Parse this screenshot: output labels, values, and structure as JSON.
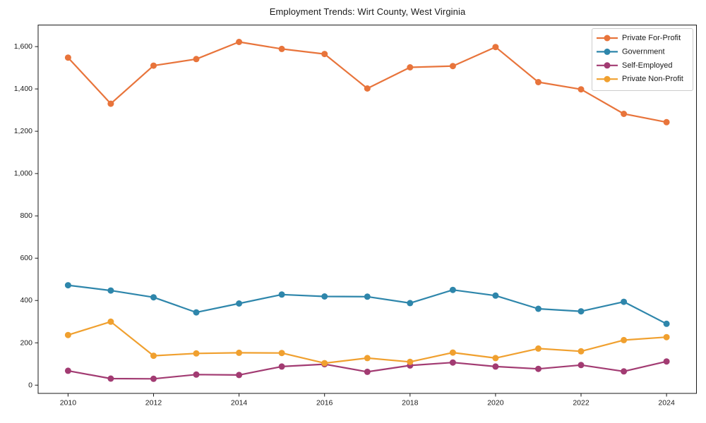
{
  "title": "Employment Trends: Wirt County, West Virginia",
  "chart_data": {
    "type": "line",
    "title": "Employment Trends: Wirt County, West Virginia",
    "xlabel": "",
    "ylabel": "",
    "grid": false,
    "legend_position": "upper-right",
    "background": "#ffffff",
    "text_color": "#1a1a1a",
    "spine_color": "#1a1a1a",
    "legend_border_color": "#cccccc",
    "x": [
      2010,
      2011,
      2012,
      2013,
      2014,
      2015,
      2016,
      2017,
      2018,
      2019,
      2020,
      2021,
      2022,
      2023,
      2024
    ],
    "xticks": [
      2010,
      2012,
      2014,
      2016,
      2018,
      2020,
      2022,
      2024
    ],
    "yticks": [
      0,
      200,
      400,
      600,
      800,
      1000,
      1200,
      1400,
      1600
    ],
    "ytick_labels": [
      "0",
      "200",
      "400",
      "600",
      "800",
      "1,000",
      "1,200",
      "1,400",
      "1,600"
    ],
    "xlim": [
      2009.3,
      2024.7
    ],
    "ylim": [
      -39,
      1702
    ],
    "series": [
      {
        "name": "Private For-Profit",
        "color": "#E8743B",
        "values": [
          1548,
          1330,
          1510,
          1541,
          1622,
          1589,
          1565,
          1402,
          1502,
          1508,
          1598,
          1432,
          1398,
          1282,
          1243
        ]
      },
      {
        "name": "Government",
        "color": "#2E86AB",
        "values": [
          472,
          447,
          415,
          344,
          386,
          428,
          419,
          418,
          388,
          450,
          423,
          361,
          349,
          394,
          290
        ]
      },
      {
        "name": "Self-Employed",
        "color": "#A23B72",
        "values": [
          68,
          31,
          30,
          50,
          48,
          88,
          99,
          63,
          93,
          107,
          88,
          77,
          95,
          65,
          112
        ]
      },
      {
        "name": "Private Non-Profit",
        "color": "#F0A02F",
        "values": [
          237,
          300,
          139,
          150,
          153,
          152,
          104,
          128,
          110,
          154,
          128,
          173,
          160,
          213,
          227
        ]
      }
    ]
  }
}
